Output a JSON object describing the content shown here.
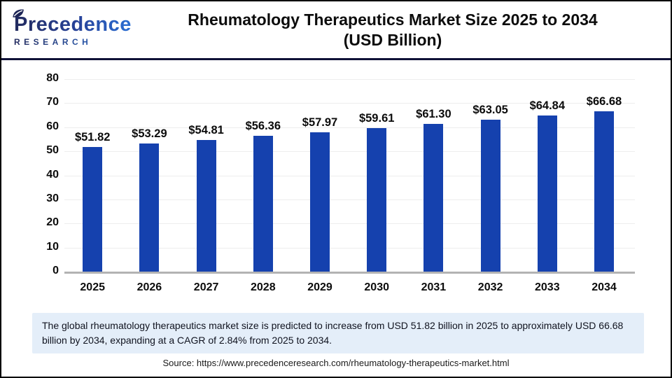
{
  "brand": {
    "name": "Precedence",
    "subname": "RESEARCH"
  },
  "header": {
    "title_line1": "Rheumatology Therapeutics Market Size 2025 to 2034",
    "title_line2": "(USD Billion)"
  },
  "chart_data": {
    "type": "bar",
    "title": "Rheumatology Therapeutics Market Size 2025 to 2034 (USD Billion)",
    "categories": [
      "2025",
      "2026",
      "2027",
      "2028",
      "2029",
      "2030",
      "2031",
      "2032",
      "2033",
      "2034"
    ],
    "values": [
      51.82,
      53.29,
      54.81,
      56.36,
      57.97,
      59.61,
      61.3,
      63.05,
      64.84,
      66.68
    ],
    "value_labels": [
      "$51.82",
      "$53.29",
      "$54.81",
      "$56.36",
      "$57.97",
      "$59.61",
      "$61.30",
      "$63.05",
      "$64.84",
      "$66.68"
    ],
    "xlabel": "",
    "ylabel": "",
    "ylim": [
      0,
      80
    ],
    "yticks": [
      0,
      10,
      20,
      30,
      40,
      50,
      60,
      70,
      80
    ],
    "grid": true,
    "legend": false,
    "bar_color": "#1541ae"
  },
  "note": {
    "text": "The global rheumatology therapeutics market size is predicted to increase from USD 51.82 billion in 2025 to approximately USD 66.68 billion by 2034, expanding at a CAGR of 2.84% from 2025 to 2034."
  },
  "source": {
    "text": "Source: https://www.precedenceresearch.com/rheumatology-therapeutics-market.html"
  },
  "colors": {
    "bar": "#1541ae",
    "separator": "#101238",
    "note_background": "#e4eef9",
    "gridline": "#ededed",
    "axis_line": "#b3b3b3"
  }
}
